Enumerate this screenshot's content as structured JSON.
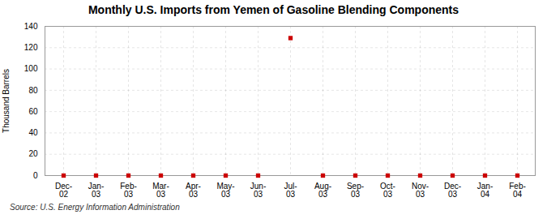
{
  "chart_data": {
    "type": "scatter",
    "title": "Monthly U.S. Imports from Yemen of Gasoline Blending Components",
    "ylabel": "Thousand Barrels",
    "source": "Source: U.S. Energy Information Administration",
    "categories": [
      "Dec-\n02",
      "Jan-\n03",
      "Feb-\n03",
      "Mar-\n03",
      "Apr-\n03",
      "May-\n03",
      "Jun-\n03",
      "Jul-\n03",
      "Aug-\n03",
      "Sep-\n03",
      "Oct-\n03",
      "Nov-\n03",
      "Dec-\n03",
      "Jan-\n04",
      "Feb-\n04"
    ],
    "values": [
      0,
      0,
      0,
      0,
      0,
      0,
      0,
      129,
      0,
      0,
      0,
      0,
      0,
      0,
      0
    ],
    "color": "#cc0000",
    "marker": "square",
    "ylim": [
      0,
      140
    ],
    "yticks": [
      0,
      20,
      40,
      60,
      80,
      100,
      120,
      140
    ],
    "grid": true
  }
}
